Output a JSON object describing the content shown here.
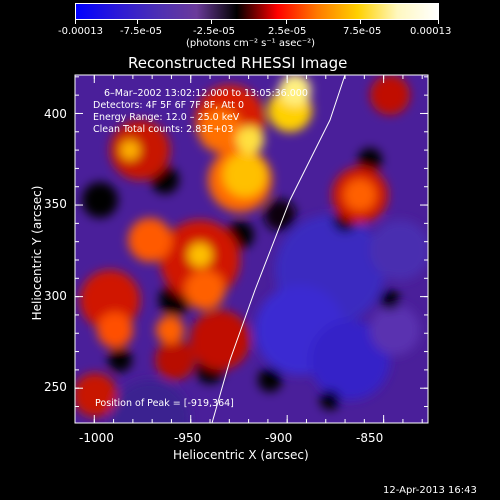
{
  "colorbar": {
    "tick_labels": [
      "-0.00013",
      "-7.5e-05",
      "-2.5e-05",
      "2.5e-05",
      "7.5e-05",
      "0.00013"
    ],
    "unit_label": "(photons cm⁻² s⁻¹ asec⁻²)",
    "colors": [
      "#0000ff",
      "#2a18d8",
      "#4b2fb5",
      "#6a3a9a",
      "#000000",
      "#ff0000",
      "#ff7a00",
      "#ffd000",
      "#fff8c0",
      "#ffffff"
    ]
  },
  "plot": {
    "title": "Reconstructed RHESSI Image",
    "info_lines": [
      "6–Mar–2002 13:02:12.000 to 13:05:36.000",
      "Detectors: 4F 5F 6F 7F 8F, Att 0",
      "Energy Range: 12.0 – 25.0 keV",
      "Clean    Total counts: 2.83E+03"
    ],
    "peak_label": "Position of Peak = [-919,364]",
    "x_axis_title": "Heliocentric X (arcsec)",
    "y_axis_title": "Heliocentric Y (arcsec)",
    "x_ticks": [
      "-1000",
      "-950",
      "-900",
      "-850"
    ],
    "y_ticks": [
      "400",
      "350",
      "300",
      "250"
    ],
    "timestamp": "12-Apr-2013 16:43"
  },
  "chart_data": {
    "type": "heatmap",
    "title": "Reconstructed RHESSI Image",
    "xlabel": "Heliocentric X (arcsec)",
    "ylabel": "Heliocentric Y (arcsec)",
    "xlim": [
      -1010,
      -827
    ],
    "ylim": [
      231,
      421
    ],
    "x_ticks": [
      -1000,
      -950,
      -900,
      -850
    ],
    "y_ticks": [
      250,
      300,
      350,
      400
    ],
    "colorbar_range": [
      -0.00013,
      0.00013
    ],
    "colorbar_ticks": [
      -0.00013,
      -7.5e-05,
      -2.5e-05,
      2.5e-05,
      7.5e-05,
      0.00013
    ],
    "peak": [
      -919,
      364
    ],
    "limb_curve": [
      [
        -938,
        231
      ],
      [
        -925,
        290
      ],
      [
        -905,
        350
      ],
      [
        -880,
        400
      ],
      [
        -872,
        421
      ]
    ]
  }
}
